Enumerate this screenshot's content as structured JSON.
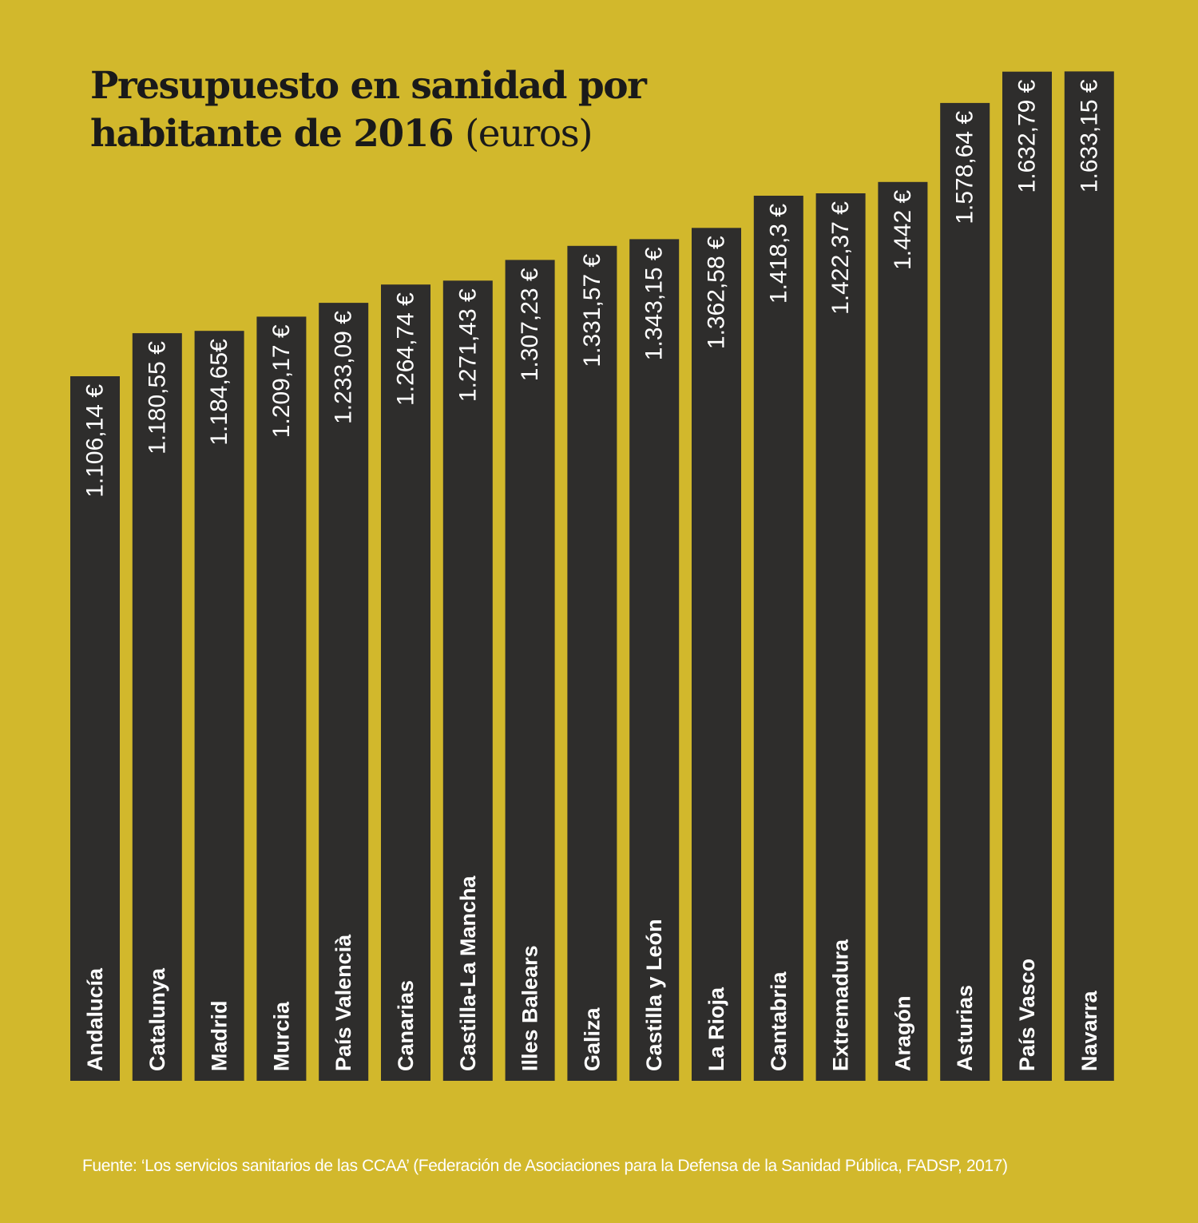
{
  "colors": {
    "background": "#d2b82c",
    "bar": "#2e2d2c",
    "bar_text": "#ffffff",
    "title": "#1a1a1a",
    "source": "#ffffff"
  },
  "title": {
    "line1": "Presupuesto en sanidad por",
    "line2_bold": "habitante de 2016",
    "line2_light": "(euros)"
  },
  "source": "Fuente: ‘Los servicios sanitarios de las CCAA’ (Federación de Asociaciones para la Defensa de la Sanidad Pública, FADSP, 2017)",
  "chart_data": {
    "type": "bar",
    "orientation": "vertical",
    "title": "Presupuesto en sanidad por habitante de 2016 (euros)",
    "categories": [
      "Andalucía",
      "Catalunya",
      "Madrid",
      "Murcia",
      "País Valencià",
      "Canarias",
      "Castilla-La Mancha",
      "Illes Balears",
      "Galiza",
      "Castilla y León",
      "La Rioja",
      "Cantabria",
      "Extremadura",
      "Aragón",
      "Asturias",
      "País Vasco",
      "Navarra"
    ],
    "values": [
      1106.14,
      1180.55,
      1184.65,
      1209.17,
      1233.09,
      1264.74,
      1271.43,
      1307.23,
      1331.57,
      1343.15,
      1362.58,
      1418.3,
      1422.37,
      1442,
      1578.64,
      1632.79,
      1633.15
    ],
    "value_labels": [
      "1.106,14 €",
      "1.180,55 €",
      "1.184,65€",
      "1.209,17 €",
      "1.233,09 €",
      "1.264,74 €",
      "1.271,43 €",
      "1.307,23 €",
      "1.331,57 €",
      "1.343,15 €",
      "1.362,58 €",
      "1.418,3 €",
      "1.422,37 €",
      "1.442 €",
      "1.578,64 €",
      "1.632,79 €",
      "1.633,15 €"
    ],
    "xlabel": "",
    "ylabel": "",
    "unit": "€",
    "grid": false,
    "legend": "none"
  }
}
